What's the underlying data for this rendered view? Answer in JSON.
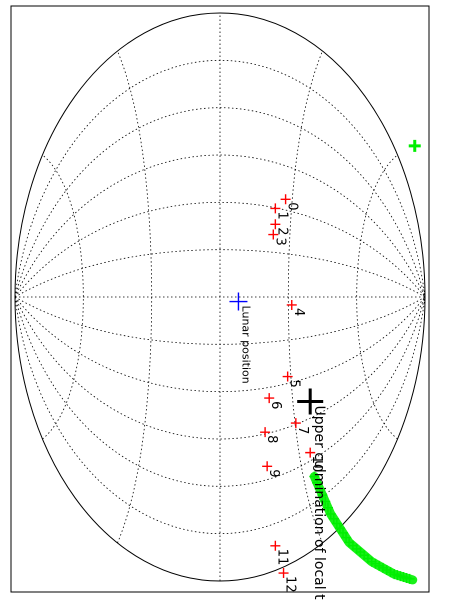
{
  "chart_data": {
    "type": "scatter",
    "projection": "Aitoff",
    "grid": true,
    "colors": {
      "points": "#ff0000",
      "lunar": "#0000ff",
      "culmination": "#000000",
      "track": "#00ee00",
      "grid": "#000000",
      "frame": "#000000"
    },
    "points": [
      {
        "label": "0",
        "x": 0.32,
        "y": 0.86
      },
      {
        "label": "1",
        "x": 0.27,
        "y": 0.78
      },
      {
        "label": "2",
        "x": 0.27,
        "y": 0.64
      },
      {
        "label": "3",
        "x": 0.26,
        "y": 0.55
      },
      {
        "label": "4",
        "x": 0.35,
        "y": -0.07
      },
      {
        "label": "5",
        "x": 0.33,
        "y": -0.7
      },
      {
        "label": "6",
        "x": 0.24,
        "y": -0.89
      },
      {
        "label": "7",
        "x": 0.37,
        "y": -1.11
      },
      {
        "label": "8",
        "x": 0.22,
        "y": -1.19
      },
      {
        "label": "9",
        "x": 0.23,
        "y": -1.49
      },
      {
        "label": "10",
        "x": 0.44,
        "y": -1.37
      },
      {
        "label": "11",
        "x": 0.27,
        "y": -2.19
      },
      {
        "label": "12",
        "x": 0.31,
        "y": -2.43
      }
    ],
    "lunar": {
      "label": "Lunar position",
      "x": 0.09,
      "y": -0.04
    },
    "culmination": {
      "label": "Upper culmination of local time",
      "x": 0.44,
      "y": -0.92
    },
    "green_track": [
      [
        0.46,
        -1.58
      ],
      [
        0.54,
        -1.91
      ],
      [
        0.63,
        -2.16
      ],
      [
        0.74,
        -2.33
      ],
      [
        0.85,
        -2.44
      ],
      [
        0.94,
        -2.49
      ]
    ],
    "green_point": {
      "x": 0.95,
      "y": 1.33
    }
  }
}
